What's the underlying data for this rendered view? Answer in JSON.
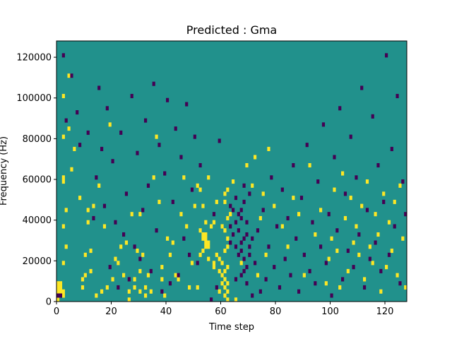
{
  "chart_data": {
    "type": "heatmap",
    "title": "Predicted : Gma",
    "xlabel": "Time step",
    "ylabel": "Frequency (Hz)",
    "xlim": [
      0,
      128
    ],
    "ylim": [
      0,
      128000
    ],
    "x_ticks": [
      0,
      20,
      40,
      60,
      80,
      100,
      120
    ],
    "x_tick_labels": [
      "0",
      "20",
      "40",
      "60",
      "80",
      "100",
      "120"
    ],
    "y_ticks": [
      0,
      20000,
      40000,
      60000,
      80000,
      100000,
      120000
    ],
    "y_tick_labels": [
      "0",
      "20000",
      "40000",
      "60000",
      "80000",
      "100000",
      "120000"
    ],
    "grid": false,
    "colormap": "viridis",
    "values_legend": {
      "low": -1,
      "mid": 0,
      "high": 1
    },
    "colors": {
      "low": "#440154",
      "mid": "#21918c",
      "high": "#fde725"
    },
    "n_time_steps": 128,
    "n_freq_bins": 64,
    "freq_bin_hz": 2000,
    "background_value": 0,
    "cells_high": [
      [
        0,
        0
      ],
      [
        0,
        2
      ],
      [
        0,
        3
      ],
      [
        0,
        4
      ],
      [
        1,
        2
      ],
      [
        1,
        3
      ],
      [
        1,
        4
      ],
      [
        2,
        1
      ],
      [
        2,
        2
      ],
      [
        2,
        9
      ],
      [
        2,
        18
      ],
      [
        2,
        29
      ],
      [
        2,
        30
      ],
      [
        2,
        40
      ],
      [
        2,
        50
      ],
      [
        3,
        13
      ],
      [
        3,
        22
      ],
      [
        4,
        42
      ],
      [
        4,
        55
      ],
      [
        5,
        32
      ],
      [
        6,
        37
      ],
      [
        8,
        25
      ],
      [
        9,
        3
      ],
      [
        9,
        5
      ],
      [
        10,
        6
      ],
      [
        10,
        11
      ],
      [
        11,
        19
      ],
      [
        11,
        22
      ],
      [
        12,
        7
      ],
      [
        12,
        12
      ],
      [
        13,
        23
      ],
      [
        14,
        1
      ],
      [
        15,
        28
      ],
      [
        16,
        2
      ],
      [
        17,
        18
      ],
      [
        18,
        3
      ],
      [
        19,
        43
      ],
      [
        20,
        5
      ],
      [
        21,
        10
      ],
      [
        22,
        9
      ],
      [
        23,
        13
      ],
      [
        24,
        6
      ],
      [
        25,
        14
      ],
      [
        26,
        0
      ],
      [
        26,
        2
      ],
      [
        27,
        21
      ],
      [
        28,
        3
      ],
      [
        28,
        5
      ],
      [
        29,
        12
      ],
      [
        30,
        2
      ],
      [
        30,
        7
      ],
      [
        30,
        21
      ],
      [
        31,
        11
      ],
      [
        32,
        1
      ],
      [
        32,
        3
      ],
      [
        33,
        6
      ],
      [
        34,
        2
      ],
      [
        35,
        30
      ],
      [
        36,
        40
      ],
      [
        37,
        24
      ],
      [
        38,
        5
      ],
      [
        38,
        8
      ],
      [
        39,
        1
      ],
      [
        40,
        15
      ],
      [
        41,
        11
      ],
      [
        42,
        14
      ],
      [
        43,
        6
      ],
      [
        44,
        5
      ],
      [
        45,
        21
      ],
      [
        46,
        30
      ],
      [
        47,
        18
      ],
      [
        48,
        3
      ],
      [
        49,
        9
      ],
      [
        50,
        23
      ],
      [
        51,
        3
      ],
      [
        51,
        28
      ],
      [
        52,
        11
      ],
      [
        52,
        17
      ],
      [
        52,
        27
      ],
      [
        53,
        12
      ],
      [
        53,
        15
      ],
      [
        53,
        16
      ],
      [
        53,
        23
      ],
      [
        54,
        13
      ],
      [
        54,
        14
      ],
      [
        54,
        15
      ],
      [
        54,
        16
      ],
      [
        54,
        19
      ],
      [
        55,
        10
      ],
      [
        55,
        13
      ],
      [
        55,
        14
      ],
      [
        55,
        30
      ],
      [
        56,
        18
      ],
      [
        57,
        8
      ],
      [
        57,
        9
      ],
      [
        57,
        19
      ],
      [
        58,
        11
      ],
      [
        58,
        24
      ],
      [
        59,
        2
      ],
      [
        59,
        7
      ],
      [
        59,
        10
      ],
      [
        60,
        4
      ],
      [
        60,
        6
      ],
      [
        60,
        9
      ],
      [
        60,
        18
      ],
      [
        61,
        1
      ],
      [
        61,
        3
      ],
      [
        61,
        5
      ],
      [
        61,
        7
      ],
      [
        61,
        12
      ],
      [
        61,
        17
      ],
      [
        61,
        24
      ],
      [
        61,
        26
      ],
      [
        62,
        0
      ],
      [
        62,
        2
      ],
      [
        62,
        4
      ],
      [
        62,
        8
      ],
      [
        62,
        13
      ],
      [
        62,
        15
      ],
      [
        62,
        20
      ],
      [
        62,
        27
      ],
      [
        63,
        21
      ],
      [
        64,
        29
      ],
      [
        65,
        0
      ],
      [
        67,
        9
      ],
      [
        69,
        33
      ],
      [
        71,
        28
      ],
      [
        72,
        35
      ],
      [
        73,
        6
      ],
      [
        74,
        20
      ],
      [
        75,
        26
      ],
      [
        76,
        11
      ],
      [
        77,
        37
      ],
      [
        79,
        23
      ],
      [
        82,
        18
      ],
      [
        84,
        13
      ],
      [
        86,
        25
      ],
      [
        88,
        21
      ],
      [
        90,
        6
      ],
      [
        92,
        33
      ],
      [
        94,
        16
      ],
      [
        96,
        22
      ],
      [
        98,
        4
      ],
      [
        99,
        10
      ],
      [
        100,
        15
      ],
      [
        101,
        27
      ],
      [
        102,
        12
      ],
      [
        103,
        3
      ],
      [
        104,
        31
      ],
      [
        105,
        20
      ],
      [
        106,
        7
      ],
      [
        107,
        25
      ],
      [
        108,
        14
      ],
      [
        109,
        18
      ],
      [
        110,
        11
      ],
      [
        111,
        23
      ],
      [
        112,
        5
      ],
      [
        113,
        29
      ],
      [
        114,
        13
      ],
      [
        115,
        9
      ],
      [
        116,
        21
      ],
      [
        117,
        16
      ],
      [
        118,
        2
      ],
      [
        119,
        26
      ],
      [
        120,
        8
      ],
      [
        121,
        19
      ],
      [
        122,
        12
      ],
      [
        123,
        24
      ],
      [
        124,
        6
      ],
      [
        125,
        28
      ],
      [
        126,
        15
      ],
      [
        127,
        3
      ]
    ],
    "cells_low": [
      [
        0,
        1
      ],
      [
        1,
        1
      ],
      [
        2,
        60
      ],
      [
        3,
        44
      ],
      [
        5,
        55
      ],
      [
        7,
        46
      ],
      [
        8,
        38
      ],
      [
        11,
        41
      ],
      [
        13,
        20
      ],
      [
        14,
        30
      ],
      [
        15,
        52
      ],
      [
        16,
        37
      ],
      [
        17,
        23
      ],
      [
        18,
        47
      ],
      [
        19,
        8
      ],
      [
        20,
        34
      ],
      [
        21,
        19
      ],
      [
        22,
        3
      ],
      [
        23,
        41
      ],
      [
        24,
        16
      ],
      [
        25,
        26
      ],
      [
        26,
        5
      ],
      [
        27,
        50
      ],
      [
        28,
        13
      ],
      [
        29,
        36
      ],
      [
        30,
        10
      ],
      [
        31,
        22
      ],
      [
        32,
        44
      ],
      [
        33,
        28
      ],
      [
        34,
        7
      ],
      [
        35,
        53
      ],
      [
        36,
        17
      ],
      [
        37,
        38
      ],
      [
        38,
        2
      ],
      [
        39,
        31
      ],
      [
        40,
        49
      ],
      [
        41,
        4
      ],
      [
        42,
        24
      ],
      [
        43,
        42
      ],
      [
        44,
        6
      ],
      [
        45,
        35
      ],
      [
        46,
        15
      ],
      [
        47,
        48
      ],
      [
        48,
        11
      ],
      [
        49,
        27
      ],
      [
        50,
        40
      ],
      [
        51,
        9
      ],
      [
        52,
        33
      ],
      [
        56,
        0
      ],
      [
        57,
        21
      ],
      [
        58,
        3
      ],
      [
        59,
        39
      ],
      [
        63,
        14
      ],
      [
        63,
        18
      ],
      [
        63,
        23
      ],
      [
        64,
        16
      ],
      [
        64,
        22
      ],
      [
        65,
        5
      ],
      [
        65,
        13
      ],
      [
        65,
        19
      ],
      [
        65,
        25
      ],
      [
        66,
        11
      ],
      [
        66,
        17
      ],
      [
        66,
        21
      ],
      [
        67,
        6
      ],
      [
        67,
        12
      ],
      [
        67,
        14
      ],
      [
        67,
        20
      ],
      [
        67,
        22
      ],
      [
        68,
        7
      ],
      [
        68,
        10
      ],
      [
        68,
        15
      ],
      [
        68,
        24
      ],
      [
        68,
        28
      ],
      [
        69,
        4
      ],
      [
        69,
        8
      ],
      [
        69,
        16
      ],
      [
        69,
        19
      ],
      [
        70,
        11
      ],
      [
        70,
        13
      ],
      [
        70,
        26
      ],
      [
        71,
        1
      ],
      [
        71,
        15
      ],
      [
        72,
        9
      ],
      [
        73,
        17
      ],
      [
        74,
        2
      ],
      [
        75,
        22
      ],
      [
        76,
        5
      ],
      [
        77,
        13
      ],
      [
        78,
        30
      ],
      [
        79,
        8
      ],
      [
        80,
        18
      ],
      [
        81,
        3
      ],
      [
        82,
        27
      ],
      [
        83,
        10
      ],
      [
        84,
        20
      ],
      [
        85,
        6
      ],
      [
        86,
        33
      ],
      [
        87,
        15
      ],
      [
        88,
        2
      ],
      [
        89,
        25
      ],
      [
        90,
        11
      ],
      [
        91,
        38
      ],
      [
        92,
        7
      ],
      [
        93,
        19
      ],
      [
        94,
        4
      ],
      [
        95,
        29
      ],
      [
        96,
        13
      ],
      [
        97,
        43
      ],
      [
        98,
        9
      ],
      [
        99,
        21
      ],
      [
        100,
        1
      ],
      [
        101,
        35
      ],
      [
        102,
        17
      ],
      [
        103,
        47
      ],
      [
        104,
        5
      ],
      [
        105,
        26
      ],
      [
        106,
        12
      ],
      [
        107,
        40
      ],
      [
        108,
        8
      ],
      [
        109,
        30
      ],
      [
        110,
        16
      ],
      [
        111,
        52
      ],
      [
        112,
        3
      ],
      [
        113,
        22
      ],
      [
        114,
        10
      ],
      [
        115,
        45
      ],
      [
        116,
        14
      ],
      [
        117,
        33
      ],
      [
        118,
        7
      ],
      [
        119,
        24
      ],
      [
        120,
        60
      ],
      [
        121,
        11
      ],
      [
        122,
        37
      ],
      [
        123,
        18
      ],
      [
        124,
        50
      ],
      [
        125,
        4
      ],
      [
        126,
        29
      ],
      [
        127,
        21
      ]
    ]
  }
}
